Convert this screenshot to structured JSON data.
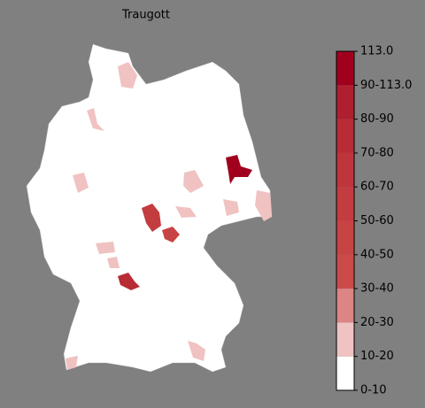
{
  "title": "Traugott",
  "legend": {
    "ticks": [
      "0-10",
      "10-20",
      "20-30",
      "30-40",
      "40-50",
      "50-60",
      "60-70",
      "70-80",
      "80-90",
      "90-113.0",
      "113.0"
    ],
    "colors": [
      "#ffffff",
      "#f0c2c2",
      "#dc8585",
      "#cc4a4a",
      "#c84343",
      "#c33c3f",
      "#be353b",
      "#b82c36",
      "#ae1f30",
      "#a0001e"
    ]
  }
}
